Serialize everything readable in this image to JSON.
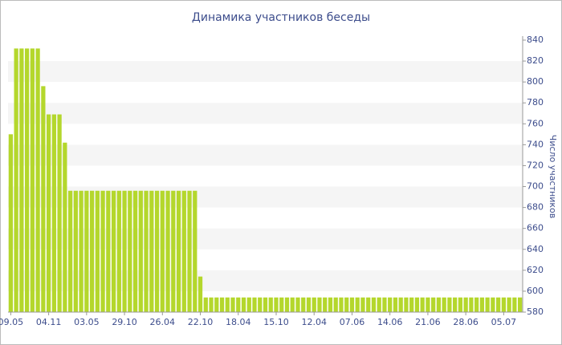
{
  "chart_data": {
    "type": "bar",
    "title": "Динамика участников беседы",
    "y_label": "Число участников",
    "color": "#b4d72c",
    "grid": true,
    "ylim": [
      580,
      840
    ],
    "yticks": [
      580,
      600,
      620,
      640,
      660,
      680,
      700,
      720,
      740,
      760,
      780,
      800,
      820,
      840
    ],
    "categories": [
      "09.05",
      null,
      null,
      null,
      null,
      null,
      null,
      "04.11",
      null,
      null,
      null,
      null,
      null,
      null,
      "03.05",
      null,
      null,
      null,
      null,
      null,
      null,
      "29.10",
      null,
      null,
      null,
      null,
      null,
      null,
      "26.04",
      null,
      null,
      null,
      null,
      null,
      null,
      "22.10",
      null,
      null,
      null,
      null,
      null,
      null,
      "18.04",
      null,
      null,
      null,
      null,
      null,
      null,
      "15.10",
      null,
      null,
      null,
      null,
      null,
      null,
      "12.04",
      null,
      null,
      null,
      null,
      null,
      null,
      "07.06",
      null,
      null,
      null,
      null,
      null,
      null,
      "14.06",
      null,
      null,
      null,
      null,
      null,
      null,
      "21.06",
      null,
      null,
      null,
      null,
      null,
      null,
      "28.06",
      null,
      null,
      null,
      null,
      null,
      null,
      "05.07",
      null,
      null,
      null
    ],
    "values": [
      750,
      832,
      832,
      832,
      832,
      832,
      796,
      769,
      769,
      769,
      742,
      696,
      696,
      696,
      696,
      696,
      696,
      696,
      696,
      696,
      696,
      696,
      696,
      696,
      696,
      696,
      696,
      696,
      696,
      696,
      696,
      696,
      696,
      696,
      696,
      614,
      594,
      594,
      594,
      594,
      594,
      594,
      594,
      594,
      594,
      594,
      594,
      594,
      594,
      594,
      594,
      594,
      594,
      594,
      594,
      594,
      594,
      594,
      594,
      594,
      594,
      594,
      594,
      594,
      594,
      594,
      594,
      594,
      594,
      594,
      594,
      594,
      594,
      594,
      594,
      594,
      594,
      594,
      594,
      594,
      594,
      594,
      594,
      594,
      594,
      594,
      594,
      594,
      594,
      594,
      594,
      594,
      594,
      594,
      594
    ]
  }
}
